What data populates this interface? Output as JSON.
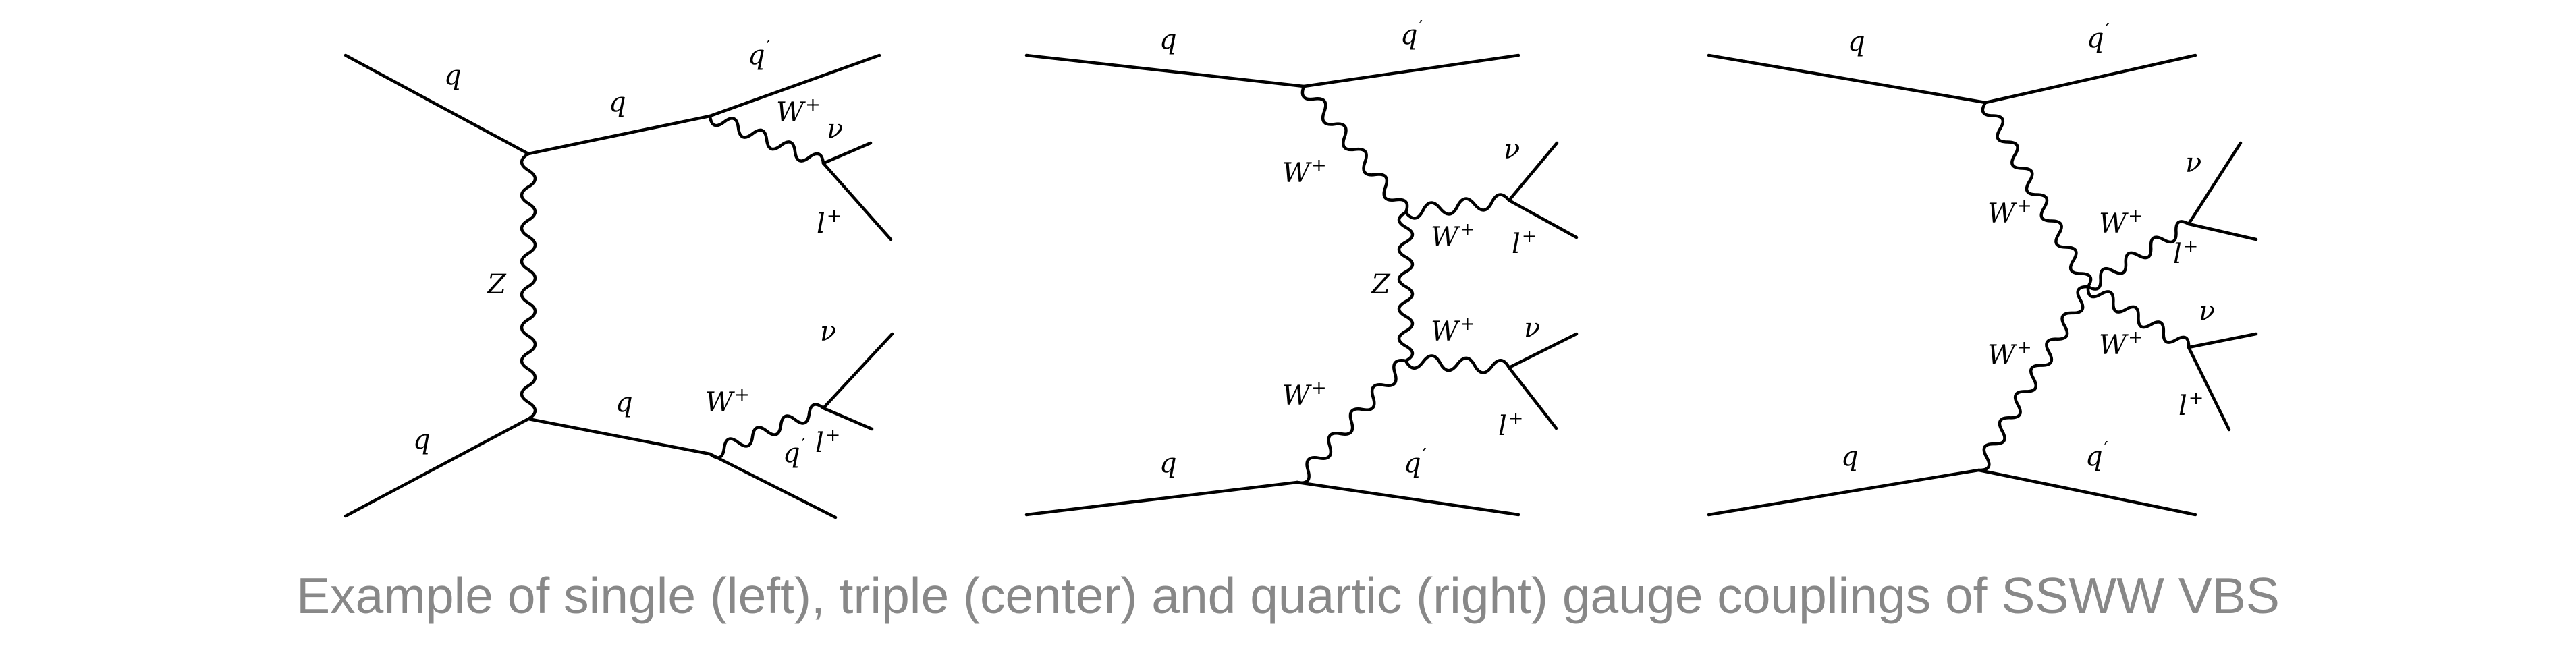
{
  "caption": "Example of single (left), triple (center) and quartic (right) gauge couplings of SSWW VBS",
  "diagrams": [
    {
      "name": "single",
      "labels": [
        {
          "text": "q",
          "sup": ""
        },
        {
          "text": "q",
          "sup": ""
        },
        {
          "text": "q",
          "sup": "′"
        },
        {
          "text": "W",
          "sup": "+"
        },
        {
          "text": "ν",
          "sup": ""
        },
        {
          "text": "l",
          "sup": "+"
        },
        {
          "text": "Z",
          "sup": ""
        },
        {
          "text": "q",
          "sup": ""
        },
        {
          "text": "q",
          "sup": ""
        },
        {
          "text": "W",
          "sup": "+"
        },
        {
          "text": "ν",
          "sup": ""
        },
        {
          "text": "q",
          "sup": "′"
        },
        {
          "text": "l",
          "sup": "+"
        }
      ]
    },
    {
      "name": "triple",
      "labels": [
        {
          "text": "q",
          "sup": ""
        },
        {
          "text": "q",
          "sup": "′"
        },
        {
          "text": "W",
          "sup": "+"
        },
        {
          "text": "ν",
          "sup": ""
        },
        {
          "text": "W",
          "sup": "+"
        },
        {
          "text": "l",
          "sup": "+"
        },
        {
          "text": "Z",
          "sup": ""
        },
        {
          "text": "W",
          "sup": "+"
        },
        {
          "text": "ν",
          "sup": ""
        },
        {
          "text": "W",
          "sup": "+"
        },
        {
          "text": "l",
          "sup": "+"
        },
        {
          "text": "q",
          "sup": ""
        },
        {
          "text": "q",
          "sup": "′"
        }
      ]
    },
    {
      "name": "quartic",
      "labels": [
        {
          "text": "q",
          "sup": ""
        },
        {
          "text": "q",
          "sup": "′"
        },
        {
          "text": "ν",
          "sup": ""
        },
        {
          "text": "W",
          "sup": "+"
        },
        {
          "text": "W",
          "sup": "+"
        },
        {
          "text": "l",
          "sup": "+"
        },
        {
          "text": "ν",
          "sup": ""
        },
        {
          "text": "W",
          "sup": "+"
        },
        {
          "text": "W",
          "sup": "+"
        },
        {
          "text": "l",
          "sup": "+"
        },
        {
          "text": "q",
          "sup": ""
        },
        {
          "text": "q",
          "sup": "′"
        }
      ]
    }
  ]
}
